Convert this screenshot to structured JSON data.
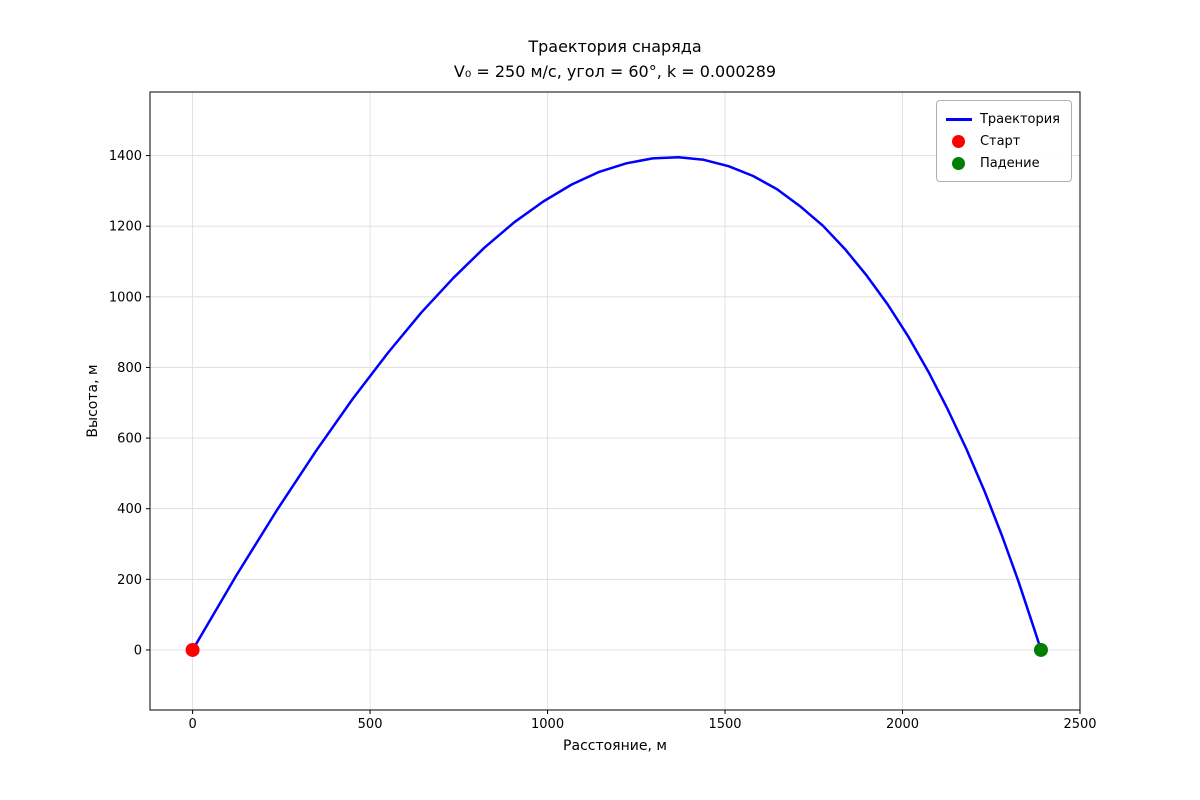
{
  "figure": {
    "background": "#ffffff"
  },
  "chart_data": {
    "type": "line",
    "title": "Траектория снаряда",
    "subtitle": "V₀ = 250 м/с, угол = 60°, k = 0.000289",
    "parameters": {
      "initial_speed": "250 м/с",
      "angle": "60°",
      "k": "0.000289"
    },
    "xlabel": "Расстояние, м",
    "ylabel": "Высота, м",
    "xlim": [
      -120,
      2500
    ],
    "ylim": [
      -170,
      1580
    ],
    "xticks": [
      0,
      500,
      1000,
      1500,
      2000,
      2500
    ],
    "yticks": [
      0,
      200,
      400,
      600,
      800,
      1000,
      1200,
      1400
    ],
    "grid": true,
    "grid_color": "#dcdcdc",
    "axis_color": "#000000",
    "legend_position": "upper right",
    "series": [
      {
        "name": "Траектория",
        "kind": "line",
        "color": "#0000ff",
        "line_width": 2.5,
        "points": [
          [
            0,
            0
          ],
          [
            123,
            211
          ],
          [
            239,
            398
          ],
          [
            348,
            564
          ],
          [
            451,
            711
          ],
          [
            550,
            841
          ],
          [
            644,
            955
          ],
          [
            735,
            1054
          ],
          [
            822,
            1139
          ],
          [
            906,
            1211
          ],
          [
            988,
            1270
          ],
          [
            1068,
            1318
          ],
          [
            1146,
            1354
          ],
          [
            1222,
            1378
          ],
          [
            1296,
            1392
          ],
          [
            1369,
            1395
          ],
          [
            1440,
            1388
          ],
          [
            1510,
            1370
          ],
          [
            1579,
            1342
          ],
          [
            1646,
            1305
          ],
          [
            1711,
            1257
          ],
          [
            1776,
            1201
          ],
          [
            1838,
            1135
          ],
          [
            1899,
            1060
          ],
          [
            1959,
            977
          ],
          [
            2017,
            886
          ],
          [
            2073,
            788
          ],
          [
            2127,
            682
          ],
          [
            2180,
            569
          ],
          [
            2231,
            450
          ],
          [
            2280,
            324
          ],
          [
            2327,
            193
          ],
          [
            2372,
            56
          ],
          [
            2390,
            0
          ]
        ]
      },
      {
        "name": "Старт",
        "kind": "scatter",
        "color": "#ff0000",
        "marker": "circle",
        "marker_name": "start-marker",
        "points": [
          [
            0,
            0
          ]
        ]
      },
      {
        "name": "Падение",
        "kind": "scatter",
        "color": "#008000",
        "marker": "circle",
        "marker_name": "landing-marker",
        "points": [
          [
            2390,
            0
          ]
        ]
      }
    ]
  }
}
